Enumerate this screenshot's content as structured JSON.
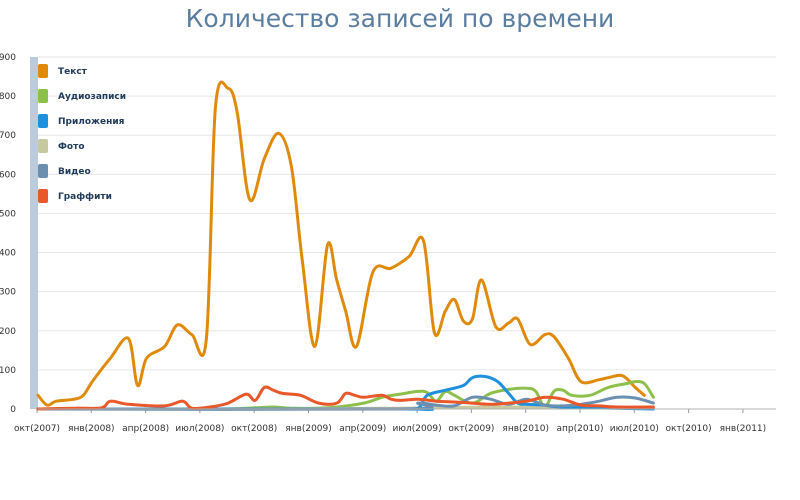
{
  "chart_data": {
    "type": "line",
    "title": "Количество записей по времени",
    "xlabel": "",
    "ylabel": "",
    "ylim": [
      0,
      900
    ],
    "yticks": [
      0,
      100,
      200,
      300,
      400,
      500,
      600,
      700,
      800,
      900
    ],
    "x_tick_labels": [
      "окт(2007)",
      "янв(2008)",
      "апр(2008)",
      "июл(2008)",
      "окт(2008)",
      "янв(2009)",
      "апр(2009)",
      "июл(2009)",
      "окт(2009)",
      "янв(2010)",
      "апр(2010)",
      "июл(2010)",
      "окт(2010)",
      "янв(2011)"
    ],
    "x_month_span": 43,
    "grid": true,
    "legend_position": "top-left",
    "series": [
      {
        "name": "Текст",
        "color": "#e08a0b",
        "points": [
          [
            0,
            35
          ],
          [
            0.5,
            10
          ],
          [
            1,
            20
          ],
          [
            2,
            25
          ],
          [
            2.5,
            35
          ],
          [
            3,
            70
          ],
          [
            4,
            130
          ],
          [
            5,
            180
          ],
          [
            5.5,
            60
          ],
          [
            6,
            130
          ],
          [
            7,
            160
          ],
          [
            7.7,
            215
          ],
          [
            8.5,
            190
          ],
          [
            9.3,
            178
          ],
          [
            9.8,
            770
          ],
          [
            10.5,
            820
          ],
          [
            11,
            760
          ],
          [
            11.7,
            535
          ],
          [
            12.5,
            640
          ],
          [
            13.3,
            705
          ],
          [
            14,
            620
          ],
          [
            14.6,
            380
          ],
          [
            15.3,
            160
          ],
          [
            16,
            420
          ],
          [
            16.5,
            330
          ],
          [
            17,
            250
          ],
          [
            17.6,
            160
          ],
          [
            18.5,
            350
          ],
          [
            19.5,
            360
          ],
          [
            20.5,
            390
          ],
          [
            21.3,
            430
          ],
          [
            21.9,
            195
          ],
          [
            22.5,
            250
          ],
          [
            23,
            280
          ],
          [
            23.5,
            225
          ],
          [
            24,
            230
          ],
          [
            24.5,
            330
          ],
          [
            25.3,
            210
          ],
          [
            26,
            220
          ],
          [
            26.5,
            230
          ],
          [
            27.2,
            165
          ],
          [
            28,
            190
          ],
          [
            28.5,
            185
          ],
          [
            29.3,
            130
          ],
          [
            30,
            70
          ],
          [
            31,
            75
          ],
          [
            31.5,
            80
          ],
          [
            32.3,
            85
          ],
          [
            33,
            55
          ],
          [
            33.5,
            35
          ]
        ]
      },
      {
        "name": "Аудиозаписи",
        "color": "#8dc04b",
        "points": [
          [
            0,
            0
          ],
          [
            5,
            0
          ],
          [
            10,
            0
          ],
          [
            12,
            3
          ],
          [
            13,
            5
          ],
          [
            14,
            2
          ],
          [
            16,
            3
          ],
          [
            18,
            15
          ],
          [
            19,
            30
          ],
          [
            20,
            38
          ],
          [
            21,
            45
          ],
          [
            21.5,
            42
          ],
          [
            22,
            20
          ],
          [
            22.5,
            45
          ],
          [
            23,
            35
          ],
          [
            24,
            15
          ],
          [
            25,
            40
          ],
          [
            26,
            50
          ],
          [
            27,
            53
          ],
          [
            27.5,
            45
          ],
          [
            28,
            5
          ],
          [
            28.5,
            45
          ],
          [
            29,
            48
          ],
          [
            29.5,
            35
          ],
          [
            30.5,
            35
          ],
          [
            31.5,
            55
          ],
          [
            32.5,
            65
          ],
          [
            33,
            70
          ],
          [
            33.5,
            65
          ],
          [
            34,
            30
          ]
        ]
      },
      {
        "name": "Приложения",
        "color": "#1e90dd",
        "points": [
          [
            0,
            0
          ],
          [
            20,
            0
          ],
          [
            21,
            2
          ],
          [
            21.5,
            35
          ],
          [
            22.5,
            48
          ],
          [
            23.5,
            60
          ],
          [
            24,
            80
          ],
          [
            24.7,
            83
          ],
          [
            25.4,
            70
          ],
          [
            26,
            40
          ],
          [
            26.5,
            15
          ],
          [
            27,
            12
          ],
          [
            28,
            10
          ],
          [
            29,
            5
          ],
          [
            34,
            0
          ]
        ]
      },
      {
        "name": "Фото",
        "color": "#c8c8a0",
        "points": [
          [
            0,
            0
          ],
          [
            10,
            0
          ],
          [
            20,
            2
          ],
          [
            25,
            5
          ],
          [
            30,
            3
          ],
          [
            34,
            2
          ]
        ]
      },
      {
        "name": "Видео",
        "color": "#6b8fb0",
        "points": [
          [
            0,
            0
          ],
          [
            20,
            0
          ],
          [
            21,
            15
          ],
          [
            22,
            10
          ],
          [
            23,
            8
          ],
          [
            24,
            30
          ],
          [
            25,
            25
          ],
          [
            26,
            12
          ],
          [
            27,
            25
          ],
          [
            28,
            10
          ],
          [
            29,
            8
          ],
          [
            30,
            12
          ],
          [
            31,
            20
          ],
          [
            32,
            30
          ],
          [
            33,
            28
          ],
          [
            34,
            15
          ]
        ]
      },
      {
        "name": "Граффити",
        "color": "#e8582a",
        "points": [
          [
            0,
            0
          ],
          [
            2,
            2
          ],
          [
            3.5,
            3
          ],
          [
            4,
            20
          ],
          [
            5,
            12
          ],
          [
            7,
            8
          ],
          [
            8,
            20
          ],
          [
            8.5,
            2
          ],
          [
            9.5,
            5
          ],
          [
            10.5,
            15
          ],
          [
            11.5,
            38
          ],
          [
            12,
            22
          ],
          [
            12.5,
            55
          ],
          [
            13,
            48
          ],
          [
            13.5,
            40
          ],
          [
            14.5,
            35
          ],
          [
            15.5,
            15
          ],
          [
            16.5,
            15
          ],
          [
            17,
            40
          ],
          [
            17.5,
            35
          ],
          [
            18,
            30
          ],
          [
            19,
            35
          ],
          [
            19.5,
            25
          ],
          [
            20,
            22
          ],
          [
            21,
            25
          ],
          [
            22,
            20
          ],
          [
            23,
            18
          ],
          [
            24,
            15
          ],
          [
            25,
            12
          ],
          [
            26,
            15
          ],
          [
            27,
            20
          ],
          [
            28,
            30
          ],
          [
            29,
            25
          ],
          [
            30,
            10
          ],
          [
            31,
            8
          ],
          [
            32,
            5
          ],
          [
            34,
            5
          ]
        ]
      }
    ]
  }
}
